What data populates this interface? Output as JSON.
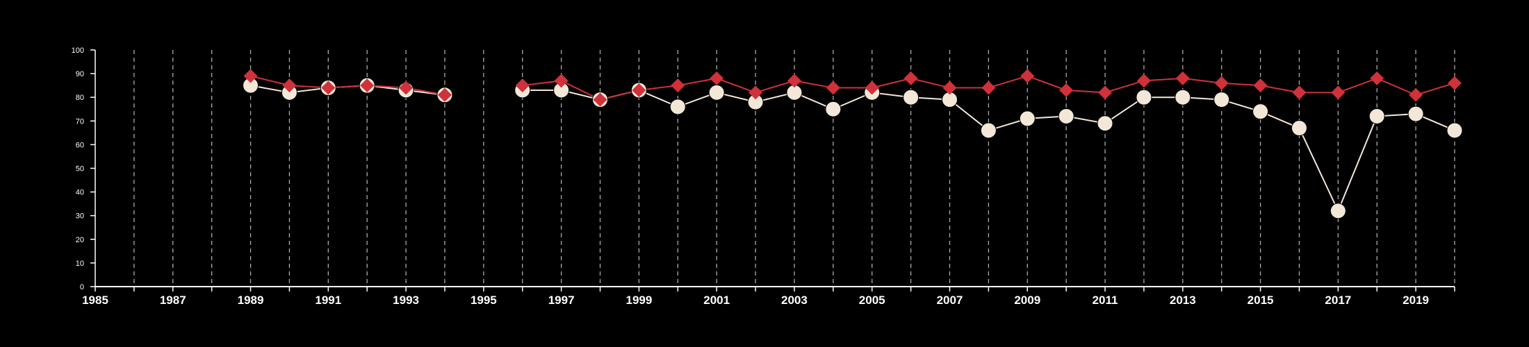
{
  "chart_data": {
    "type": "line",
    "title": "",
    "xlabel": "",
    "ylabel": "",
    "xlim": [
      1985,
      2020
    ],
    "ylim": [
      0,
      100
    ],
    "x_ticks": [
      1985,
      1987,
      1989,
      1991,
      1993,
      1995,
      1997,
      1999,
      2001,
      2003,
      2005,
      2007,
      2009,
      2011,
      2013,
      2015,
      2017,
      2019
    ],
    "x_tick_labels": [
      "1985",
      "1987",
      "1989",
      "1991",
      "1993",
      "1995",
      "1997",
      "1999",
      "2001",
      "2003",
      "2005",
      "2007",
      "2009",
      "2011",
      "2013",
      "2015",
      "2017",
      "2019"
    ],
    "y_ticks": [
      0,
      10,
      20,
      30,
      40,
      50,
      60,
      70,
      80,
      90,
      100
    ],
    "y_tick_labels": [
      "0",
      "10",
      "20",
      "30",
      "40",
      "50",
      "60",
      "70",
      "80",
      "90",
      "100"
    ],
    "grid": "vertical dashed lines at each year",
    "legend": "none",
    "x": [
      1985,
      1986,
      1987,
      1988,
      1989,
      1990,
      1991,
      1992,
      1993,
      1994,
      1995,
      1996,
      1997,
      1998,
      1999,
      2000,
      2001,
      2002,
      2003,
      2004,
      2005,
      2006,
      2007,
      2008,
      2009,
      2010,
      2011,
      2012,
      2013,
      2014,
      2015,
      2016,
      2017,
      2018,
      2019,
      2020
    ],
    "series": [
      {
        "marker": "circle",
        "color": "#f3e8d8",
        "values": [
          null,
          null,
          null,
          null,
          85,
          82,
          84,
          85,
          83,
          81,
          null,
          83,
          83,
          79,
          83,
          76,
          82,
          78,
          82,
          75,
          82,
          80,
          79,
          66,
          71,
          72,
          69,
          80,
          80,
          79,
          74,
          67,
          32,
          72,
          73,
          66
        ]
      },
      {
        "marker": "diamond",
        "color": "#d0313a",
        "values": [
          null,
          null,
          null,
          null,
          89,
          85,
          84,
          85,
          84,
          81,
          null,
          85,
          87,
          79,
          83,
          85,
          88,
          82,
          87,
          84,
          84,
          88,
          84,
          84,
          89,
          83,
          82,
          87,
          88,
          86,
          85,
          82,
          82,
          88,
          81,
          86
        ]
      }
    ],
    "colors": {
      "background": "#000000",
      "axis": "#ffffff",
      "grid": "#aaaaaa"
    }
  }
}
